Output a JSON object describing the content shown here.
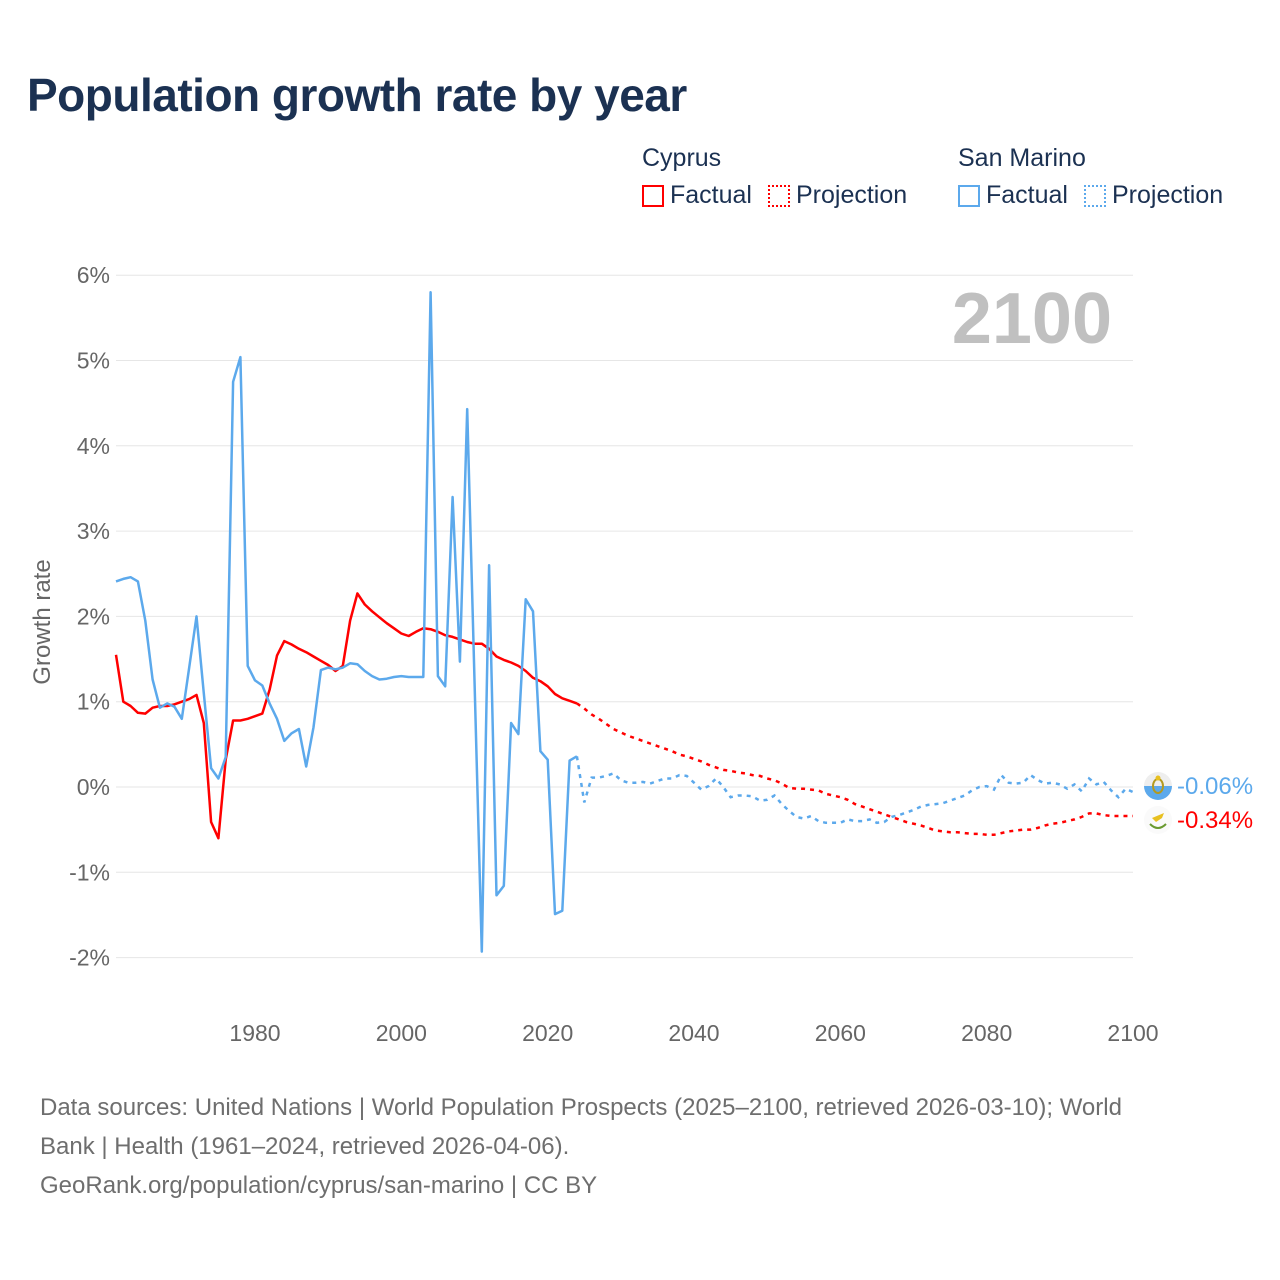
{
  "title": "Population growth rate by year",
  "legend": [
    {
      "group": "Cyprus",
      "factual": "Factual",
      "projection": "Projection",
      "color": "#ff0000"
    },
    {
      "group": "San Marino",
      "factual": "Factual",
      "projection": "Projection",
      "color": "#5ca9ec"
    }
  ],
  "year_label": "2100",
  "source_lines": [
    "Data sources: United Nations | World Population Prospects (2025–2100, retrieved 2026-03-10); World",
    "Bank | Health (1961–2024, retrieved 2026-04-06).",
    "GeoRank.org/population/cyprus/san-marino | CC BY"
  ],
  "chart_data": {
    "type": "line",
    "title": "Population growth rate by year",
    "xlabel": "",
    "ylabel": "Growth rate",
    "xlim": [
      1961,
      2100
    ],
    "ylim": [
      -2.5,
      6
    ],
    "yticks": [
      -2,
      -1,
      0,
      1,
      2,
      3,
      4,
      5,
      6
    ],
    "ytick_labels": [
      "-2%",
      "-1%",
      "0%",
      "1%",
      "2%",
      "3%",
      "4%",
      "5%",
      "6%"
    ],
    "xticks": [
      1980,
      2000,
      2020,
      2040,
      2060,
      2080,
      2100
    ],
    "xtick_labels": [
      "1980",
      "2000",
      "2020",
      "2040",
      "2060",
      "2080",
      "2100"
    ],
    "grid": true,
    "legend_position": "top-right",
    "factual_start": 1961,
    "projection_start": 2025,
    "series": [
      {
        "name": "Cyprus",
        "color": "#ff0000",
        "end_label": "-0.34%",
        "factual": [
          1.55,
          1.0,
          0.95,
          0.87,
          0.86,
          0.93,
          0.95,
          0.95,
          0.97,
          1.0,
          1.03,
          1.08,
          0.75,
          -0.41,
          -0.6,
          0.32,
          0.78,
          0.78,
          0.8,
          0.83,
          0.86,
          1.14,
          1.54,
          1.71,
          1.67,
          1.62,
          1.58,
          1.53,
          1.48,
          1.43,
          1.36,
          1.42,
          1.95,
          2.27,
          2.14,
          2.06,
          1.99,
          1.92,
          1.86,
          1.8,
          1.77,
          1.82,
          1.86,
          1.85,
          1.82,
          1.78,
          1.76,
          1.73,
          1.7,
          1.68,
          1.68,
          1.62,
          1.53,
          1.49,
          1.46,
          1.42,
          1.36,
          1.28,
          1.24,
          1.18,
          1.09,
          1.04,
          1.01,
          0.98
        ],
        "projection": [
          0.92,
          0.85,
          0.8,
          0.74,
          0.68,
          0.64,
          0.6,
          0.57,
          0.54,
          0.51,
          0.48,
          0.45,
          0.42,
          0.38,
          0.36,
          0.33,
          0.3,
          0.26,
          0.23,
          0.2,
          0.19,
          0.17,
          0.16,
          0.14,
          0.13,
          0.1,
          0.08,
          0.04,
          -0.01,
          -0.02,
          -0.02,
          -0.03,
          -0.04,
          -0.08,
          -0.1,
          -0.12,
          -0.15,
          -0.2,
          -0.23,
          -0.26,
          -0.29,
          -0.32,
          -0.35,
          -0.38,
          -0.41,
          -0.43,
          -0.45,
          -0.48,
          -0.51,
          -0.52,
          -0.53,
          -0.53,
          -0.54,
          -0.55,
          -0.55,
          -0.56,
          -0.56,
          -0.54,
          -0.52,
          -0.51,
          -0.5,
          -0.5,
          -0.48,
          -0.45,
          -0.43,
          -0.42,
          -0.4,
          -0.38,
          -0.35,
          -0.31,
          -0.31,
          -0.33,
          -0.34,
          -0.34,
          -0.34,
          -0.34
        ]
      },
      {
        "name": "San Marino",
        "color": "#5ca9ec",
        "end_label": "-0.06%",
        "factual": [
          2.41,
          2.44,
          2.46,
          2.41,
          1.95,
          1.26,
          0.93,
          0.98,
          0.94,
          0.8,
          1.4,
          2.0,
          1.1,
          0.22,
          0.1,
          0.35,
          4.75,
          5.04,
          1.42,
          1.25,
          1.19,
          0.98,
          0.8,
          0.54,
          0.63,
          0.68,
          0.24,
          0.7,
          1.37,
          1.4,
          1.38,
          1.4,
          1.45,
          1.44,
          1.36,
          1.3,
          1.26,
          1.27,
          1.29,
          1.3,
          1.29,
          1.29,
          1.29,
          5.8,
          1.3,
          1.18,
          3.4,
          1.47,
          4.43,
          1.25,
          -1.93,
          2.6,
          -1.27,
          -1.16,
          0.75,
          0.62,
          2.2,
          2.06,
          0.42,
          0.32,
          -1.49,
          -1.45,
          0.31,
          0.36
        ],
        "projection": [
          -0.18,
          0.11,
          0.11,
          0.13,
          0.16,
          0.08,
          0.05,
          0.05,
          0.06,
          0.04,
          0.07,
          0.1,
          0.1,
          0.14,
          0.13,
          0.05,
          -0.03,
          0.01,
          0.1,
          0.0,
          -0.12,
          -0.1,
          -0.1,
          -0.11,
          -0.16,
          -0.15,
          -0.1,
          -0.2,
          -0.28,
          -0.35,
          -0.37,
          -0.34,
          -0.4,
          -0.42,
          -0.42,
          -0.42,
          -0.38,
          -0.4,
          -0.4,
          -0.38,
          -0.42,
          -0.41,
          -0.35,
          -0.33,
          -0.3,
          -0.27,
          -0.23,
          -0.21,
          -0.2,
          -0.19,
          -0.16,
          -0.13,
          -0.1,
          -0.04,
          0.0,
          0.01,
          -0.03,
          0.14,
          0.05,
          0.04,
          0.05,
          0.14,
          0.08,
          0.04,
          0.05,
          0.03,
          -0.02,
          0.03,
          -0.05,
          0.1,
          0.03,
          0.06,
          -0.04,
          -0.12,
          -0.02,
          -0.06
        ]
      }
    ]
  }
}
